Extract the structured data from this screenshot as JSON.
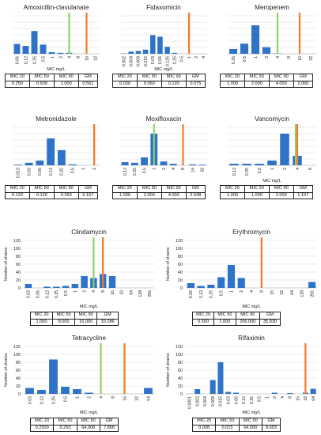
{
  "colors": {
    "bar": "#2f73c9",
    "green_line": "#8fd16a",
    "orange_line": "#f47a24",
    "grid": "#d9d9d9",
    "axis": "#9a9a9a",
    "text": "#222222"
  },
  "table_headers": [
    "MIC 20",
    "MIC 50",
    "MIC 90",
    "GM"
  ],
  "chart_data": [
    {
      "type": "bar",
      "title": "Amoxicillin-clavulanate",
      "xlabel": "MIC mg/L",
      "ylabel": "",
      "categories": [
        "0.06",
        "0.12",
        "0.25",
        "0.5",
        "1",
        "2",
        "4",
        "8",
        "16",
        "32"
      ],
      "values": [
        31,
        25,
        72,
        29,
        5,
        3,
        3,
        0,
        0,
        0
      ],
      "ylim": [
        0,
        120
      ],
      "yticks": [],
      "grid": true,
      "reference_lines": [
        {
          "color": "green",
          "category_index": 6
        },
        {
          "color": "orange",
          "category_index": 8
        }
      ],
      "table": [
        "0.250",
        "0.500",
        "1.000",
        "0.561"
      ]
    },
    {
      "type": "bar",
      "title": "Fidaxomicin",
      "xlabel": "MIC mg/L",
      "ylabel": "",
      "categories": [
        "0.002",
        "0.004",
        "0.008",
        "0.015",
        "0.03",
        "0.06",
        "0.125",
        "0.25",
        "0.5",
        "1",
        "2",
        "4"
      ],
      "values": [
        1,
        7,
        9,
        13,
        59,
        54,
        22,
        3,
        0,
        0,
        0,
        0
      ],
      "ylim": [
        0,
        120
      ],
      "yticks": [],
      "grid": true,
      "reference_lines": [
        {
          "color": "orange",
          "category_index": 9
        }
      ],
      "table": [
        "0.030",
        "0.060",
        "0.120",
        "0.075"
      ]
    },
    {
      "type": "bar",
      "title": "Meropenem",
      "xlabel": "",
      "ylabel": "",
      "categories": [
        "0.25",
        "0.5",
        "1",
        "2",
        "4",
        "8",
        "16",
        "32"
      ],
      "values": [
        15,
        32,
        90,
        21,
        1,
        0,
        0,
        0
      ],
      "ylim": [
        0,
        120
      ],
      "yticks": [],
      "grid": true,
      "reference_lines": [
        {
          "color": "green",
          "category_index": 4
        },
        {
          "color": "orange",
          "category_index": 6
        }
      ],
      "table": [
        "1.000",
        "2.000",
        "4.000",
        "2.060"
      ]
    },
    {
      "type": "bar",
      "title": "Metronidazole",
      "xlabel": "",
      "ylabel": "",
      "categories": [
        "0.015",
        "0.03",
        "0.06",
        "0.12",
        "0.25",
        "0.5",
        "1",
        "2"
      ],
      "values": [
        2,
        8,
        15,
        85,
        48,
        3,
        0,
        0
      ],
      "ylim": [
        0,
        120
      ],
      "yticks": [],
      "grid": true,
      "reference_lines": [
        {
          "color": "orange",
          "category_index": 7
        }
      ],
      "table": [
        "0.120",
        "0.120",
        "0.250",
        "0.167"
      ]
    },
    {
      "type": "bar",
      "title": "Moxifloxacin",
      "xlabel": "",
      "ylabel": "",
      "categories": [
        "0.12",
        "0.25",
        "0.5",
        "1",
        "2",
        "4",
        "8",
        "16",
        "32"
      ],
      "values": [
        10,
        8,
        25,
        100,
        12,
        5,
        0,
        3,
        2
      ],
      "ylim": [
        0,
        120
      ],
      "yticks": [],
      "grid": true,
      "reference_lines": [
        {
          "color": "green",
          "category_index": 3
        },
        {
          "color": "orange",
          "category_index": 6
        }
      ],
      "table": [
        "1.000",
        "2.000",
        "4.000",
        "2.648"
      ]
    },
    {
      "type": "bar",
      "title": "Vancomycin",
      "xlabel": "MIC mg/L",
      "ylabel": "",
      "categories": [
        "0.12",
        "0.25",
        "0.5",
        "1",
        "2",
        "4",
        "8"
      ],
      "values": [
        5,
        5,
        5,
        15,
        100,
        30,
        0
      ],
      "ylim": [
        0,
        120
      ],
      "yticks": [],
      "grid": true,
      "reference_lines": [
        {
          "color": "green",
          "category_index": 5
        },
        {
          "color": "orange",
          "category_index": 5
        }
      ],
      "table": [
        "1.000",
        "1.000",
        "2.000",
        "1.107"
      ]
    },
    {
      "type": "bar",
      "title": "Clindamycin",
      "xlabel": "MIC mg/L",
      "ylabel": "Number of strains",
      "categories": [
        "0.03",
        "0.06",
        "0.12",
        "0.25",
        "0.5",
        "1",
        "2",
        "4",
        "8",
        "16",
        "32",
        "64",
        "128",
        "256"
      ],
      "values": [
        10,
        0,
        3,
        3,
        5,
        10,
        30,
        25,
        35,
        30,
        0,
        0,
        0,
        0
      ],
      "ylim": [
        0,
        120
      ],
      "yticks": [
        "0",
        "20",
        "40",
        "60",
        "80",
        "100",
        "120"
      ],
      "grid": true,
      "reference_lines": [
        {
          "color": "green",
          "category_index": 7
        },
        {
          "color": "orange",
          "category_index": 8
        }
      ],
      "table": [
        "1.000",
        "8.000",
        "16.000",
        "10.286"
      ]
    },
    {
      "type": "bar",
      "title": "Erythromycin",
      "xlabel": "MIC mg/L",
      "ylabel": "Number of strains",
      "categories": [
        "0.06",
        "0.12",
        "0.25",
        "0.5",
        "1",
        "2",
        "4",
        "8",
        "16",
        "32",
        "64",
        "128",
        "256"
      ],
      "values": [
        12,
        5,
        8,
        27,
        58,
        25,
        0,
        0,
        0,
        0,
        0,
        0,
        15
      ],
      "ylim": [
        0,
        120
      ],
      "yticks": [
        "0",
        "20",
        "40",
        "60",
        "80",
        "100",
        "120"
      ],
      "grid": true,
      "reference_lines": [
        {
          "color": "orange",
          "category_index": 7
        }
      ],
      "table": [
        "0.500",
        "1.000",
        "256.000",
        "35.830"
      ]
    },
    {
      "type": "bar",
      "title": "Tetracycline",
      "xlabel": "MIC mg/L",
      "ylabel": "Number of strains",
      "categories": [
        "0.03",
        "0.12",
        "0.25",
        "0.5",
        "1",
        "2",
        "4",
        "8",
        "16",
        "32",
        "64"
      ],
      "values": [
        15,
        10,
        87,
        18,
        12,
        3,
        0,
        0,
        0,
        0,
        15
      ],
      "ylim": [
        0,
        120
      ],
      "yticks": [
        "0",
        "20",
        "40",
        "60",
        "80",
        "100",
        "120"
      ],
      "grid": true,
      "reference_lines": [
        {
          "color": "green",
          "category_index": 6
        },
        {
          "color": "orange",
          "category_index": 8
        }
      ],
      "table": [
        "0.2500",
        "0.250",
        "64.000",
        "7.868"
      ]
    },
    {
      "type": "bar",
      "title": "Rifaximin",
      "xlabel": "MIC mg/L",
      "ylabel": "Number of strains",
      "categories": [
        "0.0001",
        "0.002",
        "0.004",
        "0.008",
        "0.015",
        "0.03",
        "0.06",
        "0.12",
        "0.25",
        "0.5",
        "1",
        "2",
        "4",
        "8",
        "16",
        "32",
        "64"
      ],
      "values": [
        0,
        12,
        0,
        35,
        80,
        5,
        3,
        0,
        0,
        0,
        0,
        3,
        0,
        2,
        0,
        3,
        13
      ],
      "ylim": [
        0,
        120
      ],
      "yticks": [
        "0",
        "20",
        "40",
        "60",
        "80",
        "100",
        "120"
      ],
      "grid": true,
      "reference_lines": [
        {
          "color": "orange",
          "category_index": 15
        }
      ],
      "table": [
        "0.008",
        "0.015",
        "64.000",
        "8.603"
      ]
    }
  ]
}
